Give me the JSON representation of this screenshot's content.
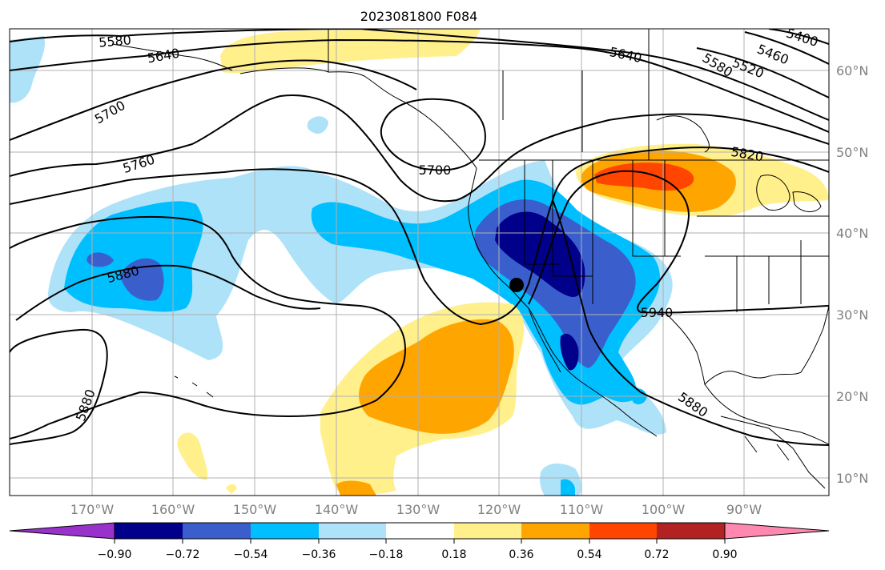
{
  "title": "2023081800 F084",
  "map": {
    "projection": "plate-carree",
    "lon_range": [
      -180,
      -79
    ],
    "lat_range": [
      7.5,
      65
    ],
    "grid": true,
    "lon_tick_labels": [
      "170°W",
      "160°W",
      "150°W",
      "140°W",
      "130°W",
      "120°W",
      "110°W",
      "100°W",
      "90°W"
    ],
    "lat_tick_labels": [
      "10°N",
      "20°N",
      "30°N",
      "40°N",
      "50°N",
      "60°N"
    ],
    "marker": "black-dot",
    "contour_labels": [
      "5580",
      "5640",
      "5700",
      "5760",
      "5880",
      "5700",
      "5640",
      "5580",
      "5520",
      "5460",
      "5400",
      "5820",
      "5940",
      "5880",
      "5880"
    ],
    "coastline_color": "#000000"
  },
  "colorbar": {
    "colors": [
      "#9932cc",
      "#00008b",
      "#3a5fcd",
      "#00bfff",
      "#aee2f9",
      "#ffffff",
      "#fff08c",
      "#ffa500",
      "#ff4500",
      "#b22222",
      "#ff88b0"
    ],
    "tick_labels": [
      "−0.90",
      "−0.72",
      "−0.54",
      "−0.36",
      "−0.18",
      "0.18",
      "0.36",
      "0.54",
      "0.72",
      "0.90"
    ],
    "extend": "both"
  }
}
